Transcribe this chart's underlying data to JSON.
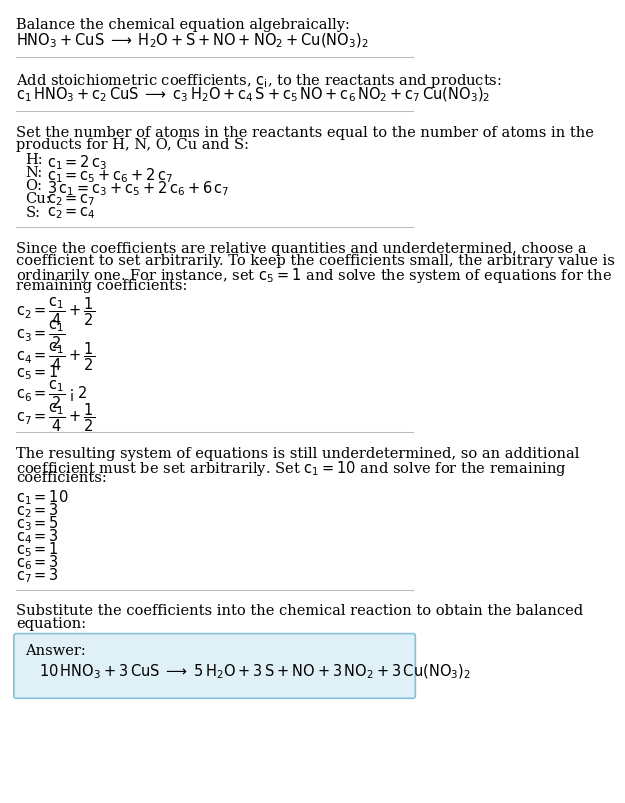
{
  "bg_color": "#ffffff",
  "text_color": "#000000",
  "answer_box_color": "#dff0f7",
  "answer_box_border": "#88c0d8",
  "fs": 10.5,
  "fs_math": 10.5,
  "section1_title": "Balance the chemical equation algebraically:",
  "section1_eq": "$\\mathrm{HNO_3 + CuS \\;\\longrightarrow\\; H_2O + S + NO + NO_2 + Cu(NO_3)_2}$",
  "section2_title": "Add stoichiometric coefficients, $c_i$, to the reactants and products:",
  "section2_eq": "$c_1\\,\\mathrm{HNO_3} + c_2\\,\\mathrm{CuS} \\;\\longrightarrow\\; c_3\\,\\mathrm{H_2O} + c_4\\,\\mathrm{S} + c_5\\,\\mathrm{NO} + c_6\\,\\mathrm{NO_2} + c_7\\,\\mathrm{Cu(NO_3)_2}$",
  "section3_title1": "Set the number of atoms in the reactants equal to the number of atoms in the",
  "section3_title2": "products for H, N, O, Cu and S:",
  "atom_labels": [
    "H:",
    "N:",
    "O:",
    "Cu:",
    "S:"
  ],
  "atom_eqs": [
    "$c_1 = 2\\,c_3$",
    "$c_1 = c_5 + c_6 + 2\\,c_7$",
    "$3\\,c_1 = c_3 + c_5 + 2\\,c_6 + 6\\,c_7$",
    "$c_2 = c_7$",
    "$c_2 = c_4$"
  ],
  "section4_lines": [
    "Since the coefficients are relative quantities and underdetermined, choose a",
    "coefficient to set arbitrarily. To keep the coefficients small, the arbitrary value is",
    "ordinarily one. For instance, set $c_5 = 1$ and solve the system of equations for the",
    "remaining coefficients:"
  ],
  "frac_eqs": [
    "$c_2 = \\dfrac{c_1}{4} + \\dfrac{1}{2}$",
    "$c_3 = \\dfrac{c_1}{2}$",
    "$c_4 = \\dfrac{c_1}{4} + \\dfrac{1}{2}$",
    "$c_5 = 1$",
    "$c_6 = \\dfrac{c_1}{2} - 2$",
    "$c_7 = \\dfrac{c_1}{4} + \\dfrac{1}{2}$"
  ],
  "section5_lines": [
    "The resulting system of equations is still underdetermined, so an additional",
    "coefficient must be set arbitrarily. Set $c_1 = 10$ and solve for the remaining",
    "coefficients:"
  ],
  "simple_eqs": [
    "$c_1 = 10$",
    "$c_2 = 3$",
    "$c_3 = 5$",
    "$c_4 = 3$",
    "$c_5 = 1$",
    "$c_6 = 3$",
    "$c_7 = 3$"
  ],
  "section6_lines": [
    "Substitute the coefficients into the chemical reaction to obtain the balanced",
    "equation:"
  ],
  "answer_label": "Answer:",
  "answer_eq": "$10\\,\\mathrm{HNO_3} + 3\\,\\mathrm{CuS} \\;\\longrightarrow\\; 5\\,\\mathrm{H_2O} + 3\\,\\mathrm{S} + \\mathrm{NO} + 3\\,\\mathrm{NO_2} + 3\\,\\mathrm{Cu(NO_3)_2}$"
}
